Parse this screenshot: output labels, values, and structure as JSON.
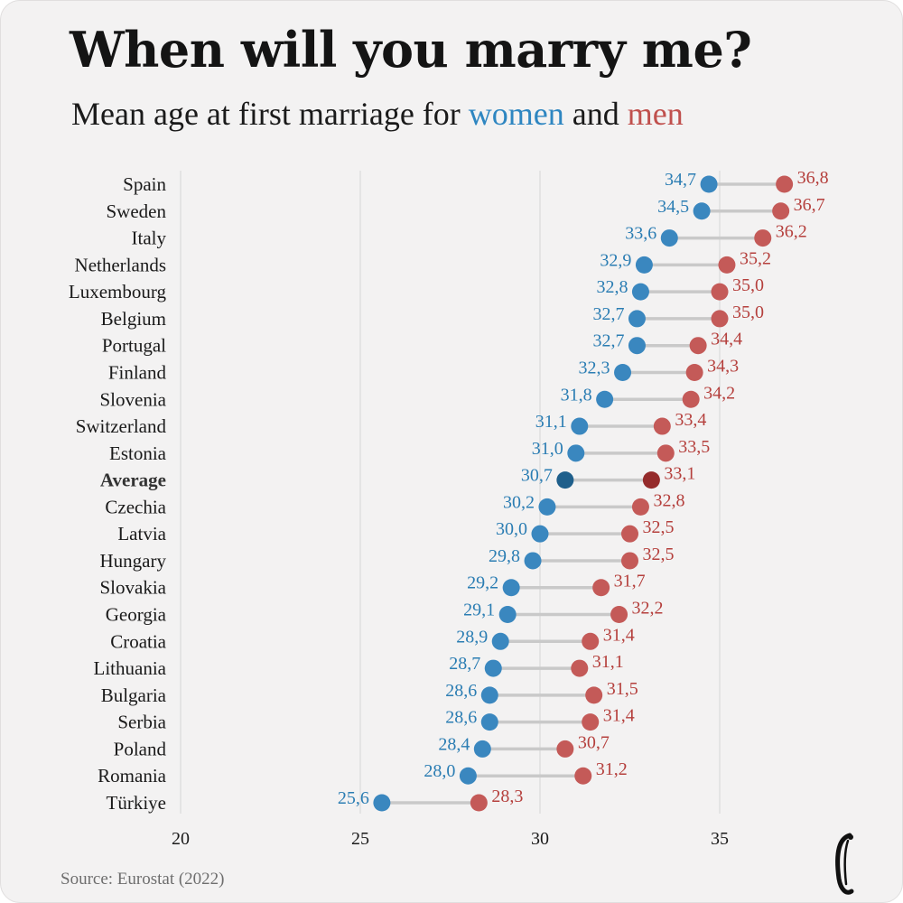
{
  "title": "When will you marry me?",
  "subtitle": {
    "prefix": "Mean age at first marriage for ",
    "women": "women",
    "middle": " and ",
    "men": "men"
  },
  "source": "Source: Eurostat (2022)",
  "colors": {
    "women": "#3a87bf",
    "men": "#c45a58",
    "women_label": "#2b7db3",
    "men_label": "#b5403d",
    "women_avg": "#1f5f8b",
    "men_avg": "#952b2b",
    "connector": "#c9c9c9",
    "grid": "#dcdcdc"
  },
  "chart_data": {
    "type": "dumbbell",
    "xlim": [
      20,
      37.5
    ],
    "xticks": [
      20,
      25,
      30,
      35
    ],
    "xtick_labels": [
      "20",
      "25",
      "30",
      "35"
    ],
    "grid": true,
    "highlight_category": "Average",
    "categories": [
      "Spain",
      "Sweden",
      "Italy",
      "Netherlands",
      "Luxembourg",
      "Belgium",
      "Portugal",
      "Finland",
      "Slovenia",
      "Switzerland",
      "Estonia",
      "Average",
      "Czechia",
      "Latvia",
      "Hungary",
      "Slovakia",
      "Georgia",
      "Croatia",
      "Lithuania",
      "Bulgaria",
      "Serbia",
      "Poland",
      "Romania",
      "Türkiye"
    ],
    "series": [
      {
        "name": "women",
        "values": [
          34.7,
          34.5,
          33.6,
          32.9,
          32.8,
          32.7,
          32.7,
          32.3,
          31.8,
          31.1,
          31.0,
          30.7,
          30.2,
          30.0,
          29.8,
          29.2,
          29.1,
          28.9,
          28.7,
          28.6,
          28.6,
          28.4,
          28.0,
          25.6
        ],
        "labels": [
          "34,7",
          "34,5",
          "33,6",
          "32,9",
          "32,8",
          "32,7",
          "32,7",
          "32,3",
          "31,8",
          "31,1",
          "31,0",
          "30,7",
          "30,2",
          "30,0",
          "29,8",
          "29,2",
          "29,1",
          "28,9",
          "28,7",
          "28,6",
          "28,6",
          "28,4",
          "28,0",
          "25,6"
        ]
      },
      {
        "name": "men",
        "values": [
          36.8,
          36.7,
          36.2,
          35.2,
          35.0,
          35.0,
          34.4,
          34.3,
          34.2,
          33.4,
          33.5,
          33.1,
          32.8,
          32.5,
          32.5,
          31.7,
          32.2,
          31.4,
          31.1,
          31.5,
          31.4,
          30.7,
          31.2,
          28.3
        ],
        "labels": [
          "36,8",
          "36,7",
          "36,2",
          "35,2",
          "35,0",
          "35,0",
          "34,4",
          "34,3",
          "34,2",
          "33,4",
          "33,5",
          "33,1",
          "32,8",
          "32,5",
          "32,5",
          "31,7",
          "32,2",
          "31,4",
          "31,1",
          "31,5",
          "31,4",
          "30,7",
          "31,2",
          "28,3"
        ]
      }
    ]
  }
}
